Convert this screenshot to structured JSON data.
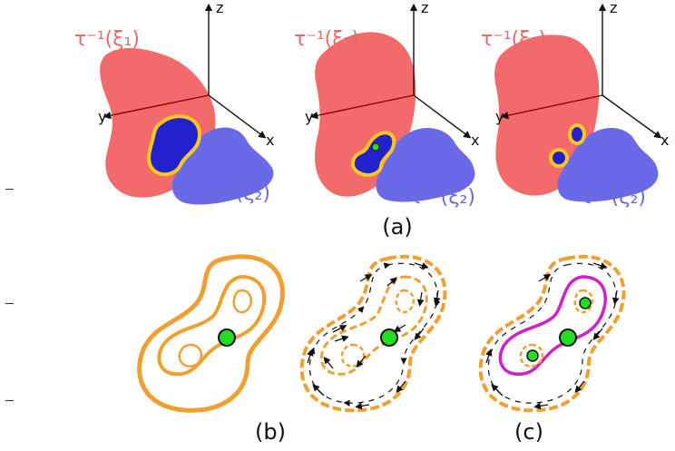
{
  "figure": {
    "panels_3d": [
      {
        "axis_z": "z",
        "axis_y": "y",
        "axis_x": "x",
        "surface_red": "τ⁻¹(ξ₁)",
        "surface_blue": "τ⁻¹(ξ₂)"
      },
      {
        "axis_z": "z",
        "axis_y": "y",
        "axis_x": "x",
        "surface_red": "τ⁻¹(ξ₁)",
        "surface_blue": "τ⁻¹(ξ₂)"
      },
      {
        "axis_z": "z",
        "axis_y": "y",
        "axis_x": "x",
        "surface_red": "τ⁻¹(ξ₁)",
        "surface_blue": "τ⁻¹(ξ₂)"
      }
    ],
    "caption_a": "(a)",
    "caption_b": "(b)",
    "caption_c": "(c)"
  },
  "colors": {
    "red_surface": "#f26a6a",
    "blue_surface": "#6666e6",
    "red_label": "#e86a6a",
    "blue_label": "#6a6ad8",
    "orange": "#f0a030",
    "yellow": "#f8c820",
    "critical_point": "#22dd22",
    "magenta": "#cc22cc"
  }
}
